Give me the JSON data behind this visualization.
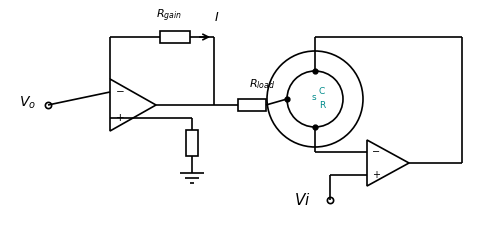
{
  "bg_color": "#ffffff",
  "line_color": "#000000",
  "cyan_color": "#008B8B",
  "figsize": [
    5.0,
    2.25
  ],
  "dpi": 100,
  "CSR_C": "C",
  "CSR_S": "s",
  "CSR_R": "R"
}
